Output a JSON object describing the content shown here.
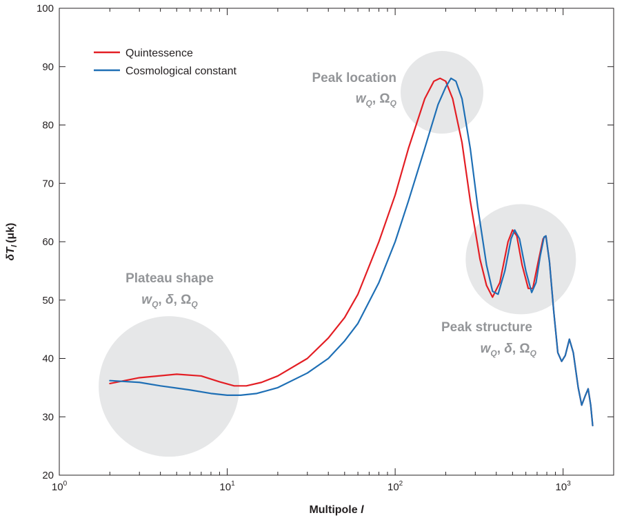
{
  "chart_data": {
    "type": "line",
    "x_scale": "log",
    "xlim": [
      1,
      2000
    ],
    "ylim": [
      20,
      100
    ],
    "grid": false,
    "legend_placement": "top-left",
    "xlabel_main": "Multipole ",
    "xlabel_var": "l",
    "ylabel_main": "δT",
    "ylabel_sub": "l",
    "ylabel_unit": "(μk)",
    "x_ticks": [
      {
        "value": 1,
        "base": "10",
        "exp": "0"
      },
      {
        "value": 10,
        "base": "10",
        "exp": "1"
      },
      {
        "value": 100,
        "base": "10",
        "exp": "2"
      },
      {
        "value": 1000,
        "base": "10",
        "exp": "3"
      }
    ],
    "y_ticks": [
      20,
      30,
      40,
      50,
      60,
      70,
      80,
      90,
      100
    ],
    "series": [
      {
        "name": "Quintessence",
        "color": "#e31e24",
        "points": [
          [
            2,
            35.7
          ],
          [
            3,
            36.7
          ],
          [
            5,
            37.3
          ],
          [
            7,
            37.0
          ],
          [
            9,
            36.0
          ],
          [
            11,
            35.3
          ],
          [
            13,
            35.3
          ],
          [
            16,
            35.9
          ],
          [
            20,
            37.0
          ],
          [
            30,
            40.0
          ],
          [
            40,
            43.5
          ],
          [
            50,
            47.0
          ],
          [
            60,
            51.0
          ],
          [
            80,
            60.0
          ],
          [
            100,
            68.0
          ],
          [
            120,
            76.0
          ],
          [
            150,
            84.5
          ],
          [
            170,
            87.5
          ],
          [
            185,
            88.0
          ],
          [
            200,
            87.5
          ],
          [
            220,
            84.5
          ],
          [
            250,
            77.0
          ],
          [
            280,
            67.0
          ],
          [
            320,
            57.0
          ],
          [
            350,
            52.5
          ],
          [
            380,
            50.5
          ],
          [
            420,
            53.0
          ],
          [
            470,
            60.0
          ],
          [
            500,
            62.0
          ],
          [
            530,
            61.0
          ],
          [
            570,
            56.0
          ],
          [
            620,
            52.0
          ],
          [
            660,
            52.0
          ],
          [
            710,
            56.5
          ],
          [
            760,
            60.5
          ],
          [
            790,
            61.0
          ],
          [
            830,
            56.5
          ],
          [
            880,
            48.0
          ],
          [
            930,
            41.0
          ],
          [
            980,
            39.5
          ],
          [
            1030,
            40.5
          ],
          [
            1090,
            43.3
          ],
          [
            1150,
            41.0
          ],
          [
            1230,
            35.0
          ],
          [
            1290,
            32.0
          ],
          [
            1350,
            33.5
          ],
          [
            1410,
            34.8
          ],
          [
            1460,
            32.0
          ],
          [
            1500,
            28.5
          ]
        ]
      },
      {
        "name": "Cosmological constant",
        "color": "#1e6fb5",
        "points": [
          [
            2,
            36.2
          ],
          [
            3,
            35.9
          ],
          [
            4,
            35.3
          ],
          [
            6,
            34.6
          ],
          [
            8,
            34.0
          ],
          [
            10,
            33.7
          ],
          [
            12,
            33.7
          ],
          [
            15,
            34.0
          ],
          [
            20,
            35.0
          ],
          [
            30,
            37.5
          ],
          [
            40,
            40.0
          ],
          [
            50,
            43.0
          ],
          [
            60,
            46.0
          ],
          [
            80,
            53.0
          ],
          [
            100,
            60.0
          ],
          [
            120,
            67.0
          ],
          [
            150,
            76.0
          ],
          [
            180,
            83.5
          ],
          [
            200,
            86.5
          ],
          [
            215,
            88.0
          ],
          [
            230,
            87.5
          ],
          [
            250,
            84.5
          ],
          [
            280,
            76.0
          ],
          [
            310,
            66.0
          ],
          [
            350,
            56.0
          ],
          [
            380,
            51.5
          ],
          [
            410,
            51.0
          ],
          [
            450,
            55.0
          ],
          [
            490,
            60.5
          ],
          [
            515,
            62.0
          ],
          [
            550,
            60.5
          ],
          [
            600,
            55.0
          ],
          [
            650,
            51.3
          ],
          [
            690,
            53.0
          ],
          [
            730,
            57.5
          ],
          [
            770,
            60.8
          ],
          [
            790,
            61.0
          ],
          [
            830,
            56.5
          ],
          [
            880,
            48.0
          ],
          [
            930,
            41.0
          ],
          [
            980,
            39.5
          ],
          [
            1030,
            40.5
          ],
          [
            1090,
            43.3
          ],
          [
            1150,
            41.0
          ],
          [
            1230,
            35.0
          ],
          [
            1290,
            32.0
          ],
          [
            1350,
            33.5
          ],
          [
            1410,
            34.8
          ],
          [
            1460,
            32.0
          ],
          [
            1500,
            28.5
          ]
        ]
      }
    ],
    "highlight_regions": [
      {
        "name": "plateau",
        "x": 4.5,
        "y": 35.2
      },
      {
        "name": "peak-location",
        "x": 190,
        "y": 85.6
      },
      {
        "name": "peak-structure",
        "x": 560,
        "y": 57.0
      }
    ],
    "annotations": {
      "plateau_title": "Plateau shape",
      "peak_location_title": "Peak location",
      "peak_structure_title": "Peak structure",
      "w": "w",
      "Q": "Q",
      "comma": ", ",
      "delta": "δ",
      "omega": "Ω"
    }
  }
}
